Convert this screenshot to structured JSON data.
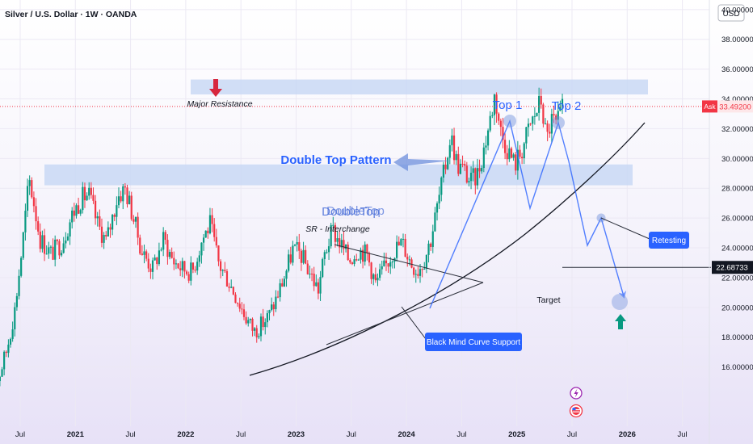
{
  "header": {
    "symbol_title": "Silver / U.S. Dollar · 1W · OANDA",
    "currency": "USD"
  },
  "price_scale": {
    "ticks": [
      "16.00000",
      "18.00000",
      "20.00000",
      "22.00000",
      "24.00000",
      "26.00000",
      "28.00000",
      "30.00000",
      "32.00000",
      "34.00000",
      "36.00000",
      "38.00000",
      "40.00000"
    ],
    "ask_label": "Ask",
    "ask_price": "33.49200",
    "target_price": "22.68733"
  },
  "time_axis": {
    "labels": [
      "Jul",
      "2021",
      "Jul",
      "2022",
      "Jul",
      "2023",
      "Jul",
      "2024",
      "Jul",
      "2025",
      "Jul",
      "2026",
      "Jul"
    ]
  },
  "annotations": {
    "major_resistance": "Major Resistance",
    "top1": "Top 1",
    "top2": "Top 2",
    "double_top_pattern": "Double Top Pattern",
    "double_top_overlap": "DoubleTop",
    "sr_interchange": "SR - Interchange",
    "retesting": "Retesting",
    "target": "Target",
    "curve_support": "Black Mind Curve Support"
  },
  "colors": {
    "up": "#089981",
    "down": "#f23645",
    "zone": "#c9d8f4",
    "accent": "#2962ff",
    "arrow_red": "#d7263d",
    "arrow_green": "#089981"
  },
  "chart_data": {
    "type": "candlestick",
    "symbol": "Silver / U.S. Dollar",
    "interval": "1W",
    "source": "OANDA",
    "ylim": [
      14.5,
      41.5
    ],
    "xlim": [
      2020.2,
      2026.55
    ],
    "zones": [
      {
        "name": "Major Resistance",
        "low": 34.3,
        "high": 35.3
      },
      {
        "name": "SR - Interchange",
        "low": 28.2,
        "high": 29.6
      }
    ],
    "key_points": [
      {
        "label": "Top 1",
        "x": 2024.8,
        "y": 34.8
      },
      {
        "label": "Top 2",
        "x": 2025.23,
        "y": 34.6
      },
      {
        "label": "Retesting",
        "x": 2025.62,
        "y": 28.3
      },
      {
        "label": "Target",
        "x": 2025.83,
        "y": 22.68733
      }
    ],
    "projection": [
      [
        2025.23,
        34.6
      ],
      [
        2025.52,
        26.4
      ],
      [
        2025.62,
        28.3
      ],
      [
        2025.83,
        22.7
      ]
    ],
    "current_price": 33.492,
    "target_price": 22.68733,
    "path": [
      [
        2020.22,
        14.6
      ],
      [
        2020.3,
        15.2
      ],
      [
        2020.38,
        17.2
      ],
      [
        2020.45,
        19.8
      ],
      [
        2020.52,
        24.2
      ],
      [
        2020.58,
        28.6
      ],
      [
        2020.62,
        27.2
      ],
      [
        2020.68,
        24.6
      ],
      [
        2020.78,
        23.6
      ],
      [
        2020.88,
        24.4
      ],
      [
        2020.97,
        26.2
      ],
      [
        2021.05,
        27.3
      ],
      [
        2021.12,
        27.6
      ],
      [
        2021.2,
        25.6
      ],
      [
        2021.28,
        24.4
      ],
      [
        2021.38,
        27.4
      ],
      [
        2021.45,
        28.0
      ],
      [
        2021.52,
        26.2
      ],
      [
        2021.6,
        23.8
      ],
      [
        2021.7,
        22.6
      ],
      [
        2021.8,
        24.6
      ],
      [
        2021.88,
        23.2
      ],
      [
        2021.97,
        22.6
      ],
      [
        2022.06,
        22.4
      ],
      [
        2022.15,
        24.6
      ],
      [
        2022.22,
        25.6
      ],
      [
        2022.3,
        22.9
      ],
      [
        2022.38,
        21.9
      ],
      [
        2022.46,
        20.7
      ],
      [
        2022.54,
        19.4
      ],
      [
        2022.62,
        18.4
      ],
      [
        2022.68,
        18.8
      ],
      [
        2022.75,
        19.4
      ],
      [
        2022.82,
        20.6
      ],
      [
        2022.9,
        22.2
      ],
      [
        2022.97,
        23.9
      ],
      [
        2023.04,
        23.6
      ],
      [
        2023.12,
        22.4
      ],
      [
        2023.2,
        21.2
      ],
      [
        2023.26,
        23.6
      ],
      [
        2023.33,
        25.2
      ],
      [
        2023.4,
        24.3
      ],
      [
        2023.48,
        23.2
      ],
      [
        2023.56,
        23.9
      ],
      [
        2023.64,
        23.6
      ],
      [
        2023.72,
        21.6
      ],
      [
        2023.8,
        22.6
      ],
      [
        2023.88,
        23.8
      ],
      [
        2023.96,
        24.4
      ],
      [
        2024.04,
        23.0
      ],
      [
        2024.1,
        22.5
      ],
      [
        2024.16,
        23.2
      ],
      [
        2024.22,
        24.6
      ],
      [
        2024.28,
        26.8
      ],
      [
        2024.35,
        29.4
      ],
      [
        2024.4,
        31.6
      ],
      [
        2024.46,
        29.6
      ],
      [
        2024.52,
        29.2
      ],
      [
        2024.58,
        28.4
      ],
      [
        2024.64,
        28.9
      ],
      [
        2024.7,
        30.6
      ],
      [
        2024.76,
        32.7
      ],
      [
        2024.8,
        34.3
      ],
      [
        2024.86,
        31.6
      ],
      [
        2024.92,
        30.6
      ],
      [
        2024.98,
        29.6
      ],
      [
        2025.04,
        30.5
      ],
      [
        2025.1,
        31.8
      ],
      [
        2025.16,
        32.9
      ],
      [
        2025.22,
        33.9
      ],
      [
        2025.27,
        31.2
      ],
      [
        2025.31,
        32.6
      ],
      [
        2025.36,
        32.2
      ],
      [
        2025.42,
        33.4
      ]
    ]
  }
}
